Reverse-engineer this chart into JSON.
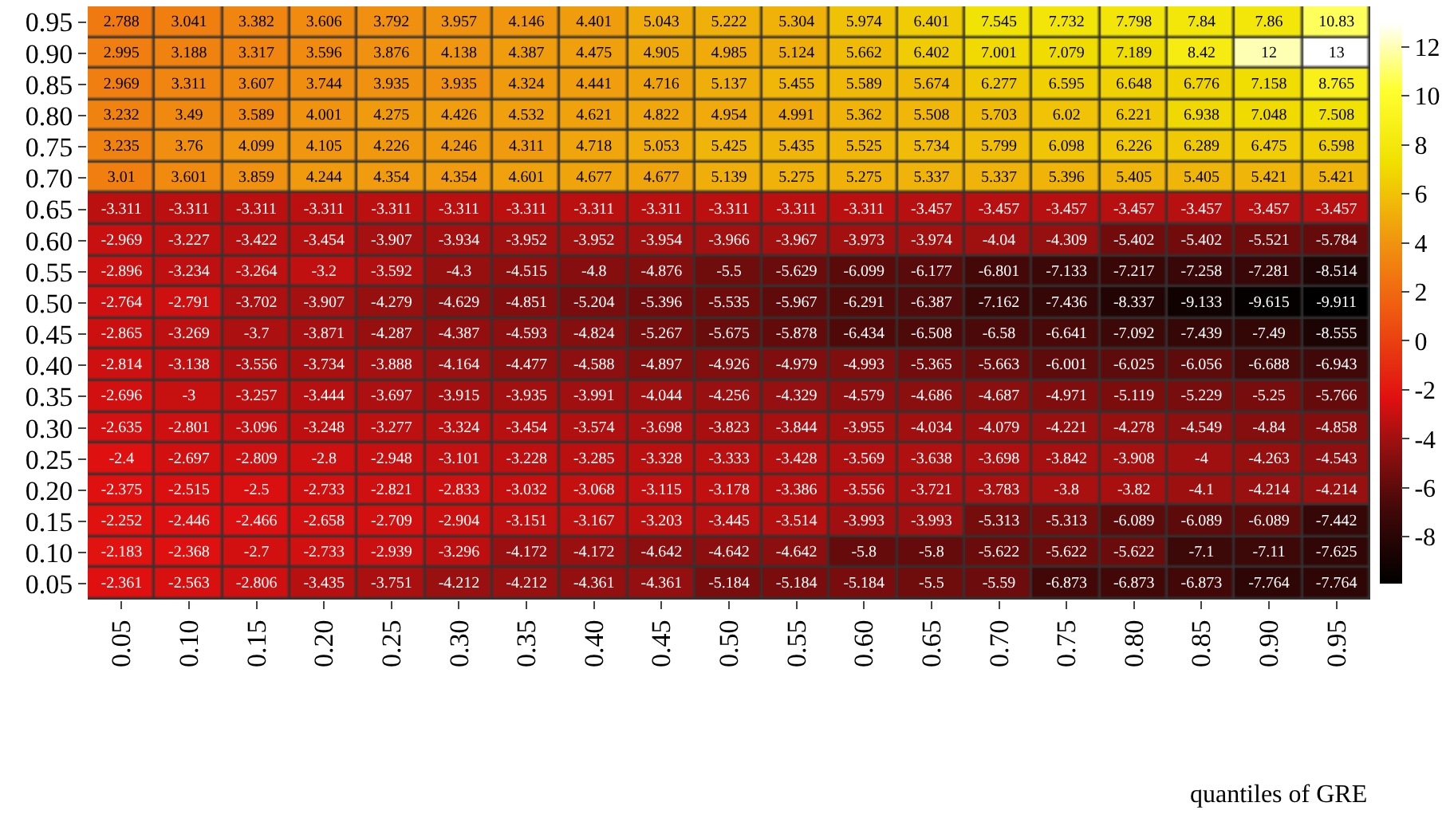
{
  "chart_data": {
    "type": "heatmap",
    "xlabel": "quantiles of GRE",
    "categories": [
      "0.05",
      "0.10",
      "0.15",
      "0.20",
      "0.25",
      "0.30",
      "0.35",
      "0.40",
      "0.45",
      "0.50",
      "0.55",
      "0.60",
      "0.65",
      "0.70",
      "0.75",
      "0.80",
      "0.85",
      "0.90",
      "0.95"
    ],
    "y_categories": [
      "0.95",
      "0.90",
      "0.85",
      "0.80",
      "0.75",
      "0.70",
      "0.65",
      "0.60",
      "0.55",
      "0.50",
      "0.45",
      "0.40",
      "0.35",
      "0.30",
      "0.25",
      "0.20",
      "0.15",
      "0.10",
      "0.05"
    ],
    "cells": [
      [
        2.788,
        3.041,
        3.382,
        3.606,
        3.792,
        3.957,
        4.146,
        4.401,
        5.043,
        5.222,
        5.304,
        5.974,
        6.401,
        7.545,
        7.732,
        7.798,
        7.84,
        7.86,
        10.83
      ],
      [
        2.995,
        3.188,
        3.317,
        3.596,
        3.876,
        4.138,
        4.387,
        4.475,
        4.905,
        4.985,
        5.124,
        5.662,
        6.402,
        7.001,
        7.079,
        7.189,
        8.42,
        12,
        13
      ],
      [
        2.969,
        3.311,
        3.607,
        3.744,
        3.935,
        3.935,
        4.324,
        4.441,
        4.716,
        5.137,
        5.455,
        5.589,
        5.674,
        6.277,
        6.595,
        6.648,
        6.776,
        7.158,
        8.765
      ],
      [
        3.232,
        3.49,
        3.589,
        4.001,
        4.275,
        4.426,
        4.532,
        4.621,
        4.822,
        4.954,
        4.991,
        5.362,
        5.508,
        5.703,
        6.02,
        6.221,
        6.938,
        7.048,
        7.508
      ],
      [
        3.235,
        3.76,
        4.099,
        4.105,
        4.226,
        4.246,
        4.311,
        4.718,
        5.053,
        5.425,
        5.435,
        5.525,
        5.734,
        5.799,
        6.098,
        6.226,
        6.289,
        6.475,
        6.598
      ],
      [
        3.01,
        3.601,
        3.859,
        4.244,
        4.354,
        4.354,
        4.601,
        4.677,
        4.677,
        5.139,
        5.275,
        5.275,
        5.337,
        5.337,
        5.396,
        5.405,
        5.405,
        5.421,
        5.421
      ],
      [
        -3.311,
        -3.311,
        -3.311,
        -3.311,
        -3.311,
        -3.311,
        -3.311,
        -3.311,
        -3.311,
        -3.311,
        -3.311,
        -3.311,
        -3.457,
        -3.457,
        -3.457,
        -3.457,
        -3.457,
        -3.457,
        -3.457
      ],
      [
        -2.969,
        -3.227,
        -3.422,
        -3.454,
        -3.907,
        -3.934,
        -3.952,
        -3.952,
        -3.954,
        -3.966,
        -3.967,
        -3.973,
        -3.974,
        -4.04,
        -4.309,
        -5.402,
        -5.402,
        -5.521,
        -5.784
      ],
      [
        -2.896,
        -3.234,
        -3.264,
        -3.2,
        -3.592,
        -4.3,
        -4.515,
        -4.8,
        -4.876,
        -5.5,
        -5.629,
        -6.099,
        -6.177,
        -6.801,
        -7.133,
        -7.217,
        -7.258,
        -7.281,
        -8.514
      ],
      [
        -2.764,
        -2.791,
        -3.702,
        -3.907,
        -4.279,
        -4.629,
        -4.851,
        -5.204,
        -5.396,
        -5.535,
        -5.967,
        -6.291,
        -6.387,
        -7.162,
        -7.436,
        -8.337,
        -9.133,
        -9.615,
        -9.911
      ],
      [
        -2.865,
        -3.269,
        -3.7,
        -3.871,
        -4.287,
        -4.387,
        -4.593,
        -4.824,
        -5.267,
        -5.675,
        -5.878,
        -6.434,
        -6.508,
        -6.58,
        -6.641,
        -7.092,
        -7.439,
        -7.49,
        -8.555
      ],
      [
        -2.814,
        -3.138,
        -3.556,
        -3.734,
        -3.888,
        -4.164,
        -4.477,
        -4.588,
        -4.897,
        -4.926,
        -4.979,
        -4.993,
        -5.365,
        -5.663,
        -6.001,
        -6.025,
        -6.056,
        -6.688,
        -6.943
      ],
      [
        -2.696,
        -3,
        -3.257,
        -3.444,
        -3.697,
        -3.915,
        -3.935,
        -3.991,
        -4.044,
        -4.256,
        -4.329,
        -4.579,
        -4.686,
        -4.687,
        -4.971,
        -5.119,
        -5.229,
        -5.25,
        -5.766
      ],
      [
        -2.635,
        -2.801,
        -3.096,
        -3.248,
        -3.277,
        -3.324,
        -3.454,
        -3.574,
        -3.698,
        -3.823,
        -3.844,
        -3.955,
        -4.034,
        -4.079,
        -4.221,
        -4.278,
        -4.549,
        -4.84,
        -4.858
      ],
      [
        -2.4,
        -2.697,
        -2.809,
        -2.8,
        -2.948,
        -3.101,
        -3.228,
        -3.285,
        -3.328,
        -3.333,
        -3.428,
        -3.569,
        -3.638,
        -3.698,
        -3.842,
        -3.908,
        -4,
        -4.263,
        -4.543
      ],
      [
        -2.375,
        -2.515,
        -2.5,
        -2.733,
        -2.821,
        -2.833,
        -3.032,
        -3.068,
        -3.115,
        -3.178,
        -3.386,
        -3.556,
        -3.721,
        -3.783,
        -3.8,
        -3.82,
        -4.1,
        -4.214,
        -4.214
      ],
      [
        -2.252,
        -2.446,
        -2.466,
        -2.658,
        -2.709,
        -2.904,
        -3.151,
        -3.167,
        -3.203,
        -3.445,
        -3.514,
        -3.993,
        -3.993,
        -5.313,
        -5.313,
        -6.089,
        -6.089,
        -6.089,
        -7.442
      ],
      [
        -2.183,
        -2.368,
        -2.7,
        -2.733,
        -2.939,
        -3.296,
        -4.172,
        -4.172,
        -4.642,
        -4.642,
        -4.642,
        -5.8,
        -5.8,
        -5.622,
        -5.622,
        -5.622,
        -7.1,
        -7.11,
        -7.625
      ],
      [
        -2.361,
        -2.563,
        -2.806,
        -3.435,
        -3.751,
        -4.212,
        -4.212,
        -4.361,
        -4.361,
        -5.184,
        -5.184,
        -5.184,
        -5.5,
        -5.59,
        -6.873,
        -6.873,
        -6.873,
        -7.764,
        -7.764
      ]
    ],
    "data_labels": true,
    "clim": [
      -9.911,
      13
    ],
    "cticks": [
      -8,
      -6,
      -4,
      -2,
      0,
      2,
      4,
      6,
      8,
      10,
      12
    ]
  }
}
